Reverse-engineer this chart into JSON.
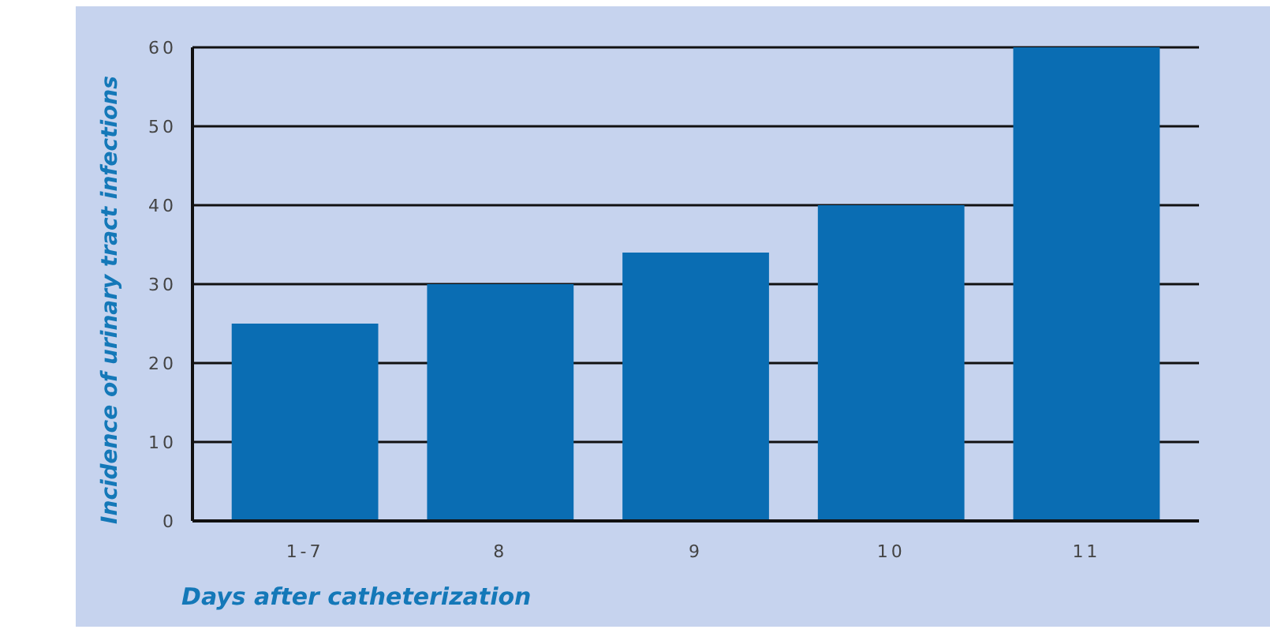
{
  "chart_data": {
    "type": "bar",
    "xlabel": "Days after catheterization",
    "ylabel": "Incidence of urinary tract infections",
    "categories": [
      "1-7",
      "8",
      "9",
      "10",
      "11"
    ],
    "values": [
      25,
      30,
      34,
      40,
      60
    ],
    "color": "#0a6db3",
    "ylim": [
      0,
      60
    ],
    "yticks": [
      0,
      10,
      20,
      30,
      40,
      50,
      60
    ],
    "grid": "y"
  }
}
